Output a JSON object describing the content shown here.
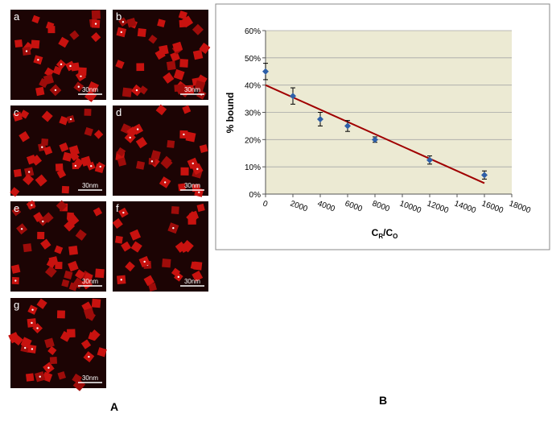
{
  "panels": [
    {
      "label": "a",
      "scale": "30nm"
    },
    {
      "label": "b",
      "scale": "30nm"
    },
    {
      "label": "c",
      "scale": "30nm"
    },
    {
      "label": "d",
      "scale": "30nm"
    },
    {
      "label": "e",
      "scale": "30nm"
    },
    {
      "label": "f",
      "scale": "30nm"
    },
    {
      "label": "g",
      "scale": "30nm"
    }
  ],
  "figure_labels": [
    "A",
    "B"
  ],
  "chart_data": {
    "type": "scatter",
    "y_label": "% bound",
    "x_label": [
      "C",
      "R",
      "/C",
      "O"
    ],
    "x": [
      0,
      2000,
      4000,
      6000,
      8000,
      12000,
      16000
    ],
    "values": [
      45,
      36,
      27.5,
      25,
      20,
      12.5,
      7
    ],
    "errors": [
      3,
      3,
      2.5,
      2,
      1,
      1.5,
      1.5
    ],
    "color": "#2e5fa8",
    "trendline": {
      "x": [
        0,
        16000
      ],
      "y": [
        40,
        4
      ],
      "color": "#a00000"
    },
    "background": "#ecead3",
    "xlim": [
      0,
      18000
    ],
    "xticks": [
      0,
      2000,
      4000,
      6000,
      8000,
      10000,
      12000,
      14000,
      16000,
      18000
    ],
    "ylim": [
      0,
      60
    ],
    "yticks": [
      {
        "value": 0,
        "label": "0%"
      },
      {
        "value": 10,
        "label": "10%"
      },
      {
        "value": 20,
        "label": "20%"
      },
      {
        "value": 30,
        "label": "30%"
      },
      {
        "value": 40,
        "label": "40%"
      },
      {
        "value": 50,
        "label": "50%"
      },
      {
        "value": 60,
        "label": "60%"
      }
    ],
    "grid": true
  }
}
